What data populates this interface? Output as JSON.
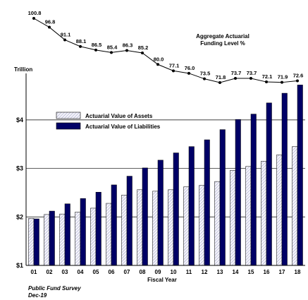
{
  "chart_data": {
    "type": "bar",
    "categories": [
      "01",
      "02",
      "03",
      "04",
      "05",
      "06",
      "07",
      "08",
      "09",
      "10",
      "11",
      "12",
      "13",
      "14",
      "15",
      "16",
      "17",
      "18"
    ],
    "series": [
      {
        "name": "Actuarial Value of Assets",
        "values": [
          1.97,
          2.05,
          2.06,
          2.1,
          2.18,
          2.28,
          2.45,
          2.56,
          2.53,
          2.56,
          2.62,
          2.65,
          2.73,
          2.96,
          3.04,
          3.15,
          3.28,
          3.45
        ]
      },
      {
        "name": "Actuarial Value of Liabilities",
        "values": [
          1.96,
          2.12,
          2.27,
          2.38,
          2.51,
          2.66,
          2.84,
          3.01,
          3.17,
          3.32,
          3.45,
          3.59,
          3.8,
          4.01,
          4.12,
          4.35,
          4.55,
          4.72
        ]
      }
    ],
    "funding_level": {
      "label": "Aggregate Actuarial Funding Level %",
      "values": [
        100.8,
        96.8,
        91.1,
        88.1,
        86.5,
        85.4,
        86.3,
        85.2,
        80.0,
        77.1,
        76.0,
        73.5,
        71.8,
        73.7,
        73.7,
        72.1,
        71.9,
        72.6
      ],
      "value_labels": [
        "100.8",
        "96.8",
        "91.1",
        "88.1",
        "86.5",
        "85.4",
        "86.3",
        "85.2",
        "80.0",
        "77.1",
        "76.0",
        "73.5",
        "71.8",
        "73.7",
        "73.7",
        "72.1",
        "71.9",
        "72.6"
      ]
    },
    "ylabel": "Trillion",
    "xlabel": "Fiscal Year",
    "ylim": [
      1.0,
      4.9
    ],
    "yticks": [
      1,
      2,
      3,
      4
    ],
    "ytick_labels": [
      "$1",
      "$2",
      "$3",
      "$4"
    ],
    "grid": true,
    "legend_placement": "upper-left",
    "colors": {
      "assets": "#e8e8f4",
      "liabilities": "#000066",
      "funding_line": "#000000"
    }
  },
  "title_lines": [
    "Aggregate Actuarial",
    "Funding Level %"
  ],
  "source": {
    "line1": "Public Fund Survey",
    "line2": "Dec-19"
  }
}
